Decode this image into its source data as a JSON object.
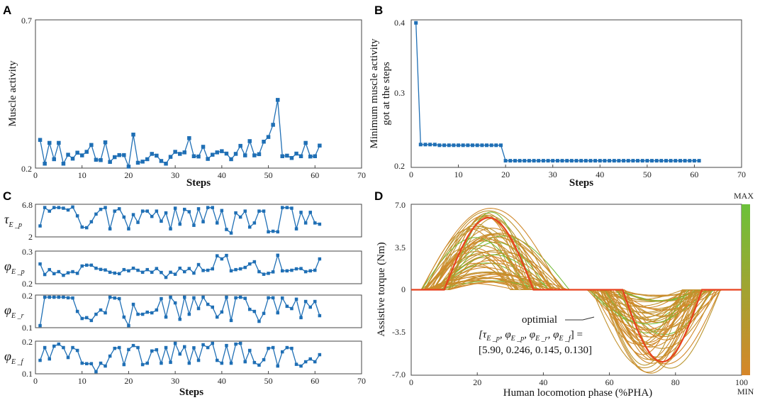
{
  "panels": {
    "A": {
      "letter": "A",
      "xlabel": "Steps",
      "ylabel": "Muscle activity",
      "xlim": [
        0,
        70
      ],
      "ylim": [
        0.2,
        0.7
      ],
      "xticks": [
        0,
        10,
        20,
        30,
        40,
        50,
        60,
        70
      ],
      "yticks": [
        "0.7",
        "0.2"
      ]
    },
    "B": {
      "letter": "B",
      "xlabel": "Steps",
      "ylabel_line1": "Minimum muscle activity",
      "ylabel_line2": "got at the steps",
      "xlim": [
        0,
        70
      ],
      "ylim": [
        0.2,
        0.4
      ],
      "xticks": [
        0,
        10,
        20,
        30,
        40,
        50,
        60,
        70
      ],
      "yticks": [
        "0.4",
        "0.3",
        "0.2"
      ]
    },
    "C": {
      "letter": "C",
      "xlabel": "Steps",
      "xlim": [
        0,
        70
      ],
      "xticks": [
        0,
        10,
        20,
        30,
        40,
        50,
        60,
        70
      ],
      "subplots": [
        {
          "label": "τ",
          "sub": "E _p",
          "ytop": "6.8",
          "ybot": "2",
          "ylim": [
            2,
            6.8
          ]
        },
        {
          "label": "φ",
          "sub": "E _p",
          "ytop": "0.3",
          "ybot": "0.2",
          "ylim": [
            0.2,
            0.3
          ]
        },
        {
          "label": "φ",
          "sub": "E _r",
          "ytop": "0.2",
          "ybot": "0.1",
          "ylim": [
            0.1,
            0.2
          ]
        },
        {
          "label": "φ",
          "sub": "E _f",
          "ytop": "0.2",
          "ybot": "0.1",
          "ylim": [
            0.1,
            0.2
          ]
        }
      ]
    },
    "D": {
      "letter": "D",
      "xlabel": "Human locomotion phase (%PHA)",
      "ylabel": "Assistive torque (Nm)",
      "xlim": [
        0,
        100
      ],
      "ylim": [
        -7,
        7
      ],
      "xticks": [
        0,
        20,
        40,
        60,
        80,
        100
      ],
      "yticks": [
        "7.0",
        "3.5",
        "0",
        "-3.5",
        "-7.0"
      ],
      "colorbar_max": "MAX",
      "colorbar_min": "MIN",
      "annotation_title": "optimial",
      "annotation_eq_lhs": "[τ",
      "annotation_eq_mid": ", φ",
      "annotation_eq_end": "] =",
      "annotation_values": "[5.90, 0.246, 0.145, 0.130]",
      "color_max": "#6cc13a",
      "color_min": "#d6862a",
      "optimal_color": "#e8411e"
    }
  },
  "chart_data": [
    {
      "type": "line",
      "panel": "A",
      "title": "",
      "xlabel": "Steps",
      "ylabel": "Muscle activity",
      "x": [
        1,
        2,
        3,
        4,
        5,
        6,
        7,
        8,
        9,
        10,
        11,
        12,
        13,
        14,
        15,
        16,
        17,
        18,
        19,
        20,
        21,
        22,
        23,
        24,
        25,
        26,
        27,
        28,
        29,
        30,
        31,
        32,
        33,
        34,
        35,
        36,
        37,
        38,
        39,
        40,
        41,
        42,
        43,
        44,
        45,
        46,
        47,
        48,
        49,
        50,
        51,
        52,
        53,
        54,
        55,
        56,
        57,
        58,
        59,
        60,
        61
      ],
      "y": [
        0.295,
        0.215,
        0.285,
        0.23,
        0.285,
        0.215,
        0.245,
        0.232,
        0.252,
        0.243,
        0.255,
        0.278,
        0.228,
        0.227,
        0.287,
        0.221,
        0.237,
        0.244,
        0.244,
        0.205,
        0.313,
        0.218,
        0.222,
        0.23,
        0.248,
        0.242,
        0.224,
        0.215,
        0.238,
        0.255,
        0.248,
        0.253,
        0.301,
        0.24,
        0.239,
        0.272,
        0.231,
        0.245,
        0.253,
        0.257,
        0.249,
        0.23,
        0.248,
        0.275,
        0.243,
        0.291,
        0.243,
        0.247,
        0.289,
        0.305,
        0.346,
        0.43,
        0.24,
        0.242,
        0.234,
        0.249,
        0.24,
        0.285,
        0.239,
        0.24,
        0.276
      ],
      "xlim": [
        0,
        70
      ],
      "ylim": [
        0.2,
        0.7
      ]
    },
    {
      "type": "line",
      "panel": "B",
      "title": "",
      "xlabel": "Steps",
      "ylabel": "Minimum muscle activity got at the steps",
      "x": [
        1,
        2,
        3,
        4,
        5,
        6,
        7,
        8,
        9,
        10,
        11,
        12,
        13,
        14,
        15,
        16,
        17,
        18,
        19,
        20,
        21,
        22,
        23,
        24,
        25,
        26,
        27,
        28,
        29,
        30,
        31,
        32,
        33,
        34,
        35,
        36,
        37,
        38,
        39,
        40,
        41,
        42,
        43,
        44,
        45,
        46,
        47,
        48,
        49,
        50,
        51,
        52,
        53,
        54,
        55,
        56,
        57,
        58,
        59,
        60,
        61
      ],
      "y": [
        0.396,
        0.231,
        0.231,
        0.231,
        0.231,
        0.23,
        0.23,
        0.23,
        0.23,
        0.23,
        0.23,
        0.23,
        0.23,
        0.23,
        0.23,
        0.23,
        0.23,
        0.23,
        0.23,
        0.209,
        0.209,
        0.209,
        0.209,
        0.209,
        0.209,
        0.209,
        0.209,
        0.209,
        0.209,
        0.209,
        0.209,
        0.209,
        0.209,
        0.209,
        0.209,
        0.209,
        0.209,
        0.209,
        0.209,
        0.209,
        0.209,
        0.209,
        0.209,
        0.209,
        0.209,
        0.209,
        0.209,
        0.209,
        0.209,
        0.209,
        0.209,
        0.209,
        0.209,
        0.209,
        0.209,
        0.209,
        0.209,
        0.209,
        0.209,
        0.209,
        0.209
      ],
      "xlim": [
        0,
        70
      ],
      "ylim": [
        0.2,
        0.4
      ]
    },
    {
      "type": "line",
      "panel": "C",
      "xlabel": "Steps",
      "x": [
        1,
        2,
        3,
        4,
        5,
        6,
        7,
        8,
        9,
        10,
        11,
        12,
        13,
        14,
        15,
        16,
        17,
        18,
        19,
        20,
        21,
        22,
        23,
        24,
        25,
        26,
        27,
        28,
        29,
        30,
        31,
        32,
        33,
        34,
        35,
        36,
        37,
        38,
        39,
        40,
        41,
        42,
        43,
        44,
        45,
        46,
        47,
        48,
        49,
        50,
        51,
        52,
        53,
        54,
        55,
        56,
        57,
        58,
        59,
        60,
        61
      ],
      "series": [
        {
          "name": "τE_p",
          "ylim": [
            2,
            6.8
          ],
          "values": [
            3.5,
            6.6,
            6.0,
            6.6,
            6.6,
            6.5,
            6.2,
            6.7,
            5.2,
            3.3,
            3.2,
            4.2,
            5.5,
            6.3,
            6.6,
            3.0,
            6.0,
            6.4,
            5.0,
            3.0,
            5.4,
            4.1,
            6.0,
            6.0,
            5.1,
            6.0,
            4.3,
            5.7,
            3.0,
            6.5,
            3.8,
            6.3,
            5.9,
            3.6,
            6.4,
            4.2,
            6.6,
            6.6,
            4.0,
            6.1,
            2.9,
            2.3,
            5.7,
            5.0,
            6.0,
            3.3,
            4.0,
            6.0,
            6.0,
            2.5,
            2.6,
            2.5,
            6.6,
            6.6,
            6.5,
            3.0,
            5.8,
            4.0,
            5.8,
            4.0,
            3.8
          ]
        },
        {
          "name": "φE_p",
          "ylim": [
            0.2,
            0.3
          ],
          "values": [
            0.262,
            0.225,
            0.242,
            0.228,
            0.235,
            0.222,
            0.231,
            0.235,
            0.229,
            0.255,
            0.258,
            0.258,
            0.247,
            0.243,
            0.241,
            0.233,
            0.23,
            0.228,
            0.242,
            0.238,
            0.247,
            0.24,
            0.233,
            0.242,
            0.233,
            0.246,
            0.232,
            0.215,
            0.233,
            0.226,
            0.247,
            0.235,
            0.246,
            0.23,
            0.26,
            0.239,
            0.24,
            0.245,
            0.291,
            0.28,
            0.292,
            0.238,
            0.242,
            0.245,
            0.25,
            0.262,
            0.27,
            0.235,
            0.226,
            0.229,
            0.234,
            0.293,
            0.238,
            0.238,
            0.24,
            0.245,
            0.246,
            0.235,
            0.238,
            0.24,
            0.28
          ]
        },
        {
          "name": "φE_r",
          "ylim": [
            0.1,
            0.2
          ],
          "values": [
            0.1,
            0.2,
            0.2,
            0.2,
            0.2,
            0.2,
            0.198,
            0.197,
            0.15,
            0.125,
            0.128,
            0.118,
            0.14,
            0.155,
            0.145,
            0.2,
            0.197,
            0.195,
            0.13,
            0.1,
            0.175,
            0.14,
            0.14,
            0.147,
            0.145,
            0.155,
            0.195,
            0.13,
            0.2,
            0.18,
            0.122,
            0.2,
            0.14,
            0.198,
            0.16,
            0.2,
            0.175,
            0.165,
            0.13,
            0.148,
            0.2,
            0.118,
            0.198,
            0.2,
            0.196,
            0.157,
            0.15,
            0.115,
            0.143,
            0.198,
            0.198,
            0.145,
            0.197,
            0.168,
            0.16,
            0.193,
            0.128,
            0.185,
            0.165,
            0.185,
            0.135
          ]
        },
        {
          "name": "φE_f",
          "ylim": [
            0.1,
            0.2
          ],
          "values": [
            0.14,
            0.185,
            0.145,
            0.19,
            0.197,
            0.185,
            0.15,
            0.185,
            0.175,
            0.13,
            0.128,
            0.128,
            0.1,
            0.13,
            0.12,
            0.155,
            0.182,
            0.185,
            0.125,
            0.178,
            0.192,
            0.185,
            0.125,
            0.13,
            0.173,
            0.177,
            0.13,
            0.185,
            0.133,
            0.2,
            0.162,
            0.188,
            0.13,
            0.184,
            0.14,
            0.195,
            0.185,
            0.2,
            0.14,
            0.13,
            0.192,
            0.13,
            0.197,
            0.2,
            0.135,
            0.175,
            0.132,
            0.123,
            0.142,
            0.182,
            0.185,
            0.12,
            0.17,
            0.185,
            0.182,
            0.126,
            0.12,
            0.135,
            0.145,
            0.135,
            0.16
          ]
        }
      ]
    },
    {
      "type": "line",
      "panel": "D",
      "xlabel": "Human locomotion phase (%PHA)",
      "ylabel": "Assistive torque (Nm)",
      "xlim": [
        0,
        100
      ],
      "ylim": [
        -7,
        7
      ],
      "optimal": {
        "peak": 5.9,
        "pos_start": 10,
        "pos_end": 37,
        "neg_start": 64,
        "neg_end": 88,
        "neg_peak": -5.9
      },
      "curves_note": "Family of torque profiles colored from MIN to MAX muscle activity"
    }
  ]
}
